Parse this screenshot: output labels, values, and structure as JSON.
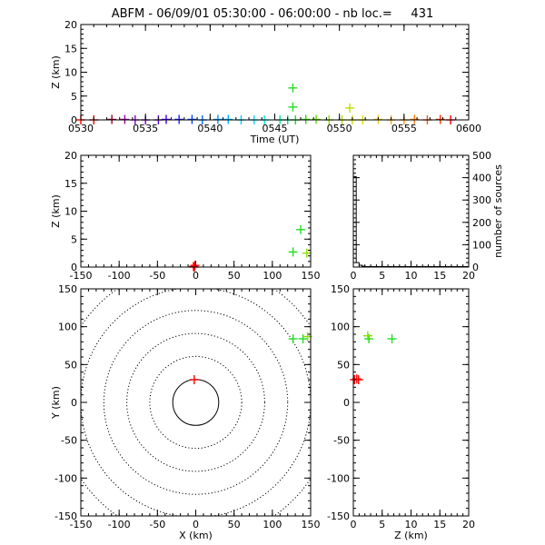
{
  "title": "ABFM - 06/09/01 05:30:00 - 06:00:00 - nb loc.=     431",
  "chart_data": [
    {
      "id": "time_height",
      "type": "scatter",
      "xlabel": "Time (UT)",
      "ylabel": "Z (km)",
      "xlim": [
        0,
        30
      ],
      "ylim": [
        0,
        20
      ],
      "xtick_labels": [
        "0530",
        "0535",
        "0540",
        "0545",
        "0550",
        "0555",
        "0600"
      ],
      "yticks": [
        0,
        5,
        10,
        15,
        20
      ],
      "points": [
        {
          "x": 0.0,
          "y": 0.0,
          "color": "#ff0000"
        },
        {
          "x": 1.0,
          "y": 0.0,
          "color": "#e60000"
        },
        {
          "x": 2.4,
          "y": 0.1,
          "color": "#a00030"
        },
        {
          "x": 3.4,
          "y": 0.1,
          "color": "#9a00a0"
        },
        {
          "x": 4.2,
          "y": 0.0,
          "color": "#8a00c0"
        },
        {
          "x": 5.0,
          "y": 0.0,
          "color": "#7000d0"
        },
        {
          "x": 6.0,
          "y": 0.0,
          "color": "#5a00e0"
        },
        {
          "x": 6.6,
          "y": 0.1,
          "color": "#4000ff"
        },
        {
          "x": 7.6,
          "y": 0.1,
          "color": "#2020ff"
        },
        {
          "x": 8.6,
          "y": 0.1,
          "color": "#0040ff"
        },
        {
          "x": 9.4,
          "y": 0.0,
          "color": "#0070ff"
        },
        {
          "x": 10.6,
          "y": 0.1,
          "color": "#0099ff"
        },
        {
          "x": 11.4,
          "y": 0.1,
          "color": "#00b4ff"
        },
        {
          "x": 12.4,
          "y": 0.0,
          "color": "#00c8ff"
        },
        {
          "x": 13.4,
          "y": 0.0,
          "color": "#00dcff"
        },
        {
          "x": 14.2,
          "y": 0.0,
          "color": "#00e8e0"
        },
        {
          "x": 15.4,
          "y": 0.0,
          "color": "#00e8a0"
        },
        {
          "x": 16.0,
          "y": 0.0,
          "color": "#00e070"
        },
        {
          "x": 16.4,
          "y": 6.7,
          "color": "#22dd22"
        },
        {
          "x": 16.4,
          "y": 2.7,
          "color": "#22dd22"
        },
        {
          "x": 16.6,
          "y": 0.0,
          "color": "#22dd22"
        },
        {
          "x": 17.4,
          "y": 0.1,
          "color": "#33dd00"
        },
        {
          "x": 18.2,
          "y": 0.1,
          "color": "#66e000"
        },
        {
          "x": 19.2,
          "y": 0.0,
          "color": "#88e000"
        },
        {
          "x": 20.2,
          "y": 0.0,
          "color": "#aae000"
        },
        {
          "x": 20.8,
          "y": 2.5,
          "color": "#bbe000"
        },
        {
          "x": 21.0,
          "y": 0.0,
          "color": "#cce000"
        },
        {
          "x": 21.8,
          "y": 0.0,
          "color": "#dddd00"
        },
        {
          "x": 23.0,
          "y": 0.1,
          "color": "#eecc00"
        },
        {
          "x": 24.0,
          "y": 0.0,
          "color": "#ffaa00"
        },
        {
          "x": 25.0,
          "y": 0.0,
          "color": "#ff9900"
        },
        {
          "x": 25.8,
          "y": 0.1,
          "color": "#ff7700"
        },
        {
          "x": 26.8,
          "y": 0.0,
          "color": "#ff5500"
        },
        {
          "x": 27.8,
          "y": 0.1,
          "color": "#ff3300"
        },
        {
          "x": 28.6,
          "y": 0.0,
          "color": "#ff0000"
        }
      ]
    },
    {
      "id": "x_height",
      "type": "scatter",
      "ylabel": "Z (km)",
      "xlim": [
        -150,
        150
      ],
      "ylim": [
        0,
        20
      ],
      "xticks": [
        -150,
        -100,
        -50,
        0,
        50,
        100,
        150
      ],
      "yticks": [
        0,
        5,
        10,
        15,
        20
      ],
      "points": [
        {
          "x": -2,
          "y": 0.0,
          "color": "#ff0000"
        },
        {
          "x": -1,
          "y": 0.3,
          "color": "#ff0000"
        },
        {
          "x": -3,
          "y": 0.1,
          "color": "#ff0000"
        },
        {
          "x": 127,
          "y": 2.7,
          "color": "#22dd22"
        },
        {
          "x": 137,
          "y": 6.7,
          "color": "#22dd22"
        },
        {
          "x": 145,
          "y": 2.5,
          "color": "#88e000"
        }
      ]
    },
    {
      "id": "height_histogram",
      "type": "line",
      "ylabel": "number of sources",
      "xlim": [
        0,
        20
      ],
      "ylim": [
        0,
        500
      ],
      "xticks": [
        0,
        5,
        10,
        15,
        20
      ],
      "yticks": [
        0,
        100,
        200,
        300,
        400,
        500
      ],
      "x": [
        0,
        0.5,
        1,
        1.5,
        2,
        20
      ],
      "values": [
        405,
        20,
        8,
        4,
        2,
        0
      ]
    },
    {
      "id": "plan_view",
      "type": "scatter",
      "xlabel": "X (km)",
      "ylabel": "Y (km)",
      "xlim": [
        -150,
        150
      ],
      "ylim": [
        -150,
        150
      ],
      "xticks": [
        -150,
        -100,
        -50,
        0,
        50,
        100,
        150
      ],
      "yticks": [
        -150,
        -100,
        -50,
        0,
        50,
        100,
        150
      ],
      "range_rings_km": [
        30,
        60,
        90,
        120,
        150,
        180
      ],
      "points": [
        {
          "x": -2,
          "y": 30,
          "color": "#ff0000"
        },
        {
          "x": 127,
          "y": 84,
          "color": "#22dd22"
        },
        {
          "x": 140,
          "y": 84,
          "color": "#22dd22"
        },
        {
          "x": 146,
          "y": 87,
          "color": "#88e000"
        }
      ]
    },
    {
      "id": "height_y",
      "type": "scatter",
      "xlabel": "Z (km)",
      "xlim": [
        0,
        20
      ],
      "ylim": [
        -150,
        150
      ],
      "xticks": [
        0,
        5,
        10,
        15,
        20
      ],
      "yticks": [
        -150,
        -100,
        -50,
        0,
        50,
        100,
        150
      ],
      "points": [
        {
          "x": 0.2,
          "y": 30,
          "color": "#ff0000"
        },
        {
          "x": 0.6,
          "y": 31,
          "color": "#ff0000"
        },
        {
          "x": 0.9,
          "y": 30,
          "color": "#ff0000"
        },
        {
          "x": 2.7,
          "y": 84,
          "color": "#22dd22"
        },
        {
          "x": 6.7,
          "y": 84,
          "color": "#22dd22"
        },
        {
          "x": 2.5,
          "y": 88,
          "color": "#88e000"
        }
      ]
    }
  ]
}
